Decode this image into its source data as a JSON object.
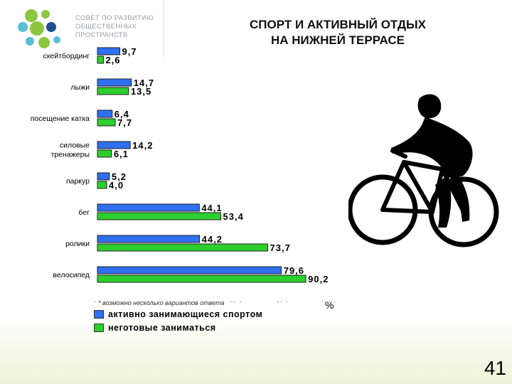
{
  "header": {
    "logo_lines": [
      "СОВЕТ ПО РАЗВИТИЮ",
      "ОБЩЕСТВЕННЫХ",
      "ПРОСТРАНСТВ"
    ],
    "title_line1": "СПОРТ И АКТИВНЫЙ ОТДЫХ",
    "title_line2": "НА НИЖНЕЙ ТЕРРАСЕ"
  },
  "footnote": "* возможно несколько вариантов ответа",
  "unit": "%",
  "page_number": "41",
  "colors": {
    "series1": "#2f6ff0",
    "series2": "#2ccf2c",
    "accent": "#8dc63f"
  },
  "chart_data": {
    "type": "bar",
    "orientation": "horizontal",
    "categories": [
      "скейтбординг",
      "лыжи",
      "посещение катка",
      "силовые тренажеры",
      "паркур",
      "бег",
      "ролики",
      "велосипед"
    ],
    "category_lines": [
      [
        "скейтбординг"
      ],
      [
        "лыжи"
      ],
      [
        "посещение катка"
      ],
      [
        "силовые",
        "тренажеры"
      ],
      [
        "паркур"
      ],
      [
        "бег"
      ],
      [
        "ролики"
      ],
      [
        "велосипед"
      ]
    ],
    "series": [
      {
        "name": "активно занимающиеся спортом",
        "values": [
          9.7,
          14.7,
          6.4,
          14.2,
          5.2,
          44.1,
          44.2,
          79.6
        ],
        "labels": [
          "9,7",
          "14,7",
          "6,4",
          "14,2",
          "5,2",
          "44,1",
          "44,2",
          "79,6"
        ]
      },
      {
        "name": "неготовые заниматься",
        "values": [
          2.6,
          13.5,
          7.7,
          6.1,
          4.0,
          53.4,
          73.7,
          90.2
        ],
        "labels": [
          "2,6",
          "13,5",
          "7,7",
          "6,1",
          "4,0",
          "53,4",
          "73,7",
          "90,2"
        ]
      }
    ],
    "xlim": [
      0,
      100
    ],
    "xticks": [
      "0,0",
      "20,0",
      "40,0",
      "60,0",
      "80,0",
      "100,0"
    ],
    "legend_position": "bottom"
  }
}
